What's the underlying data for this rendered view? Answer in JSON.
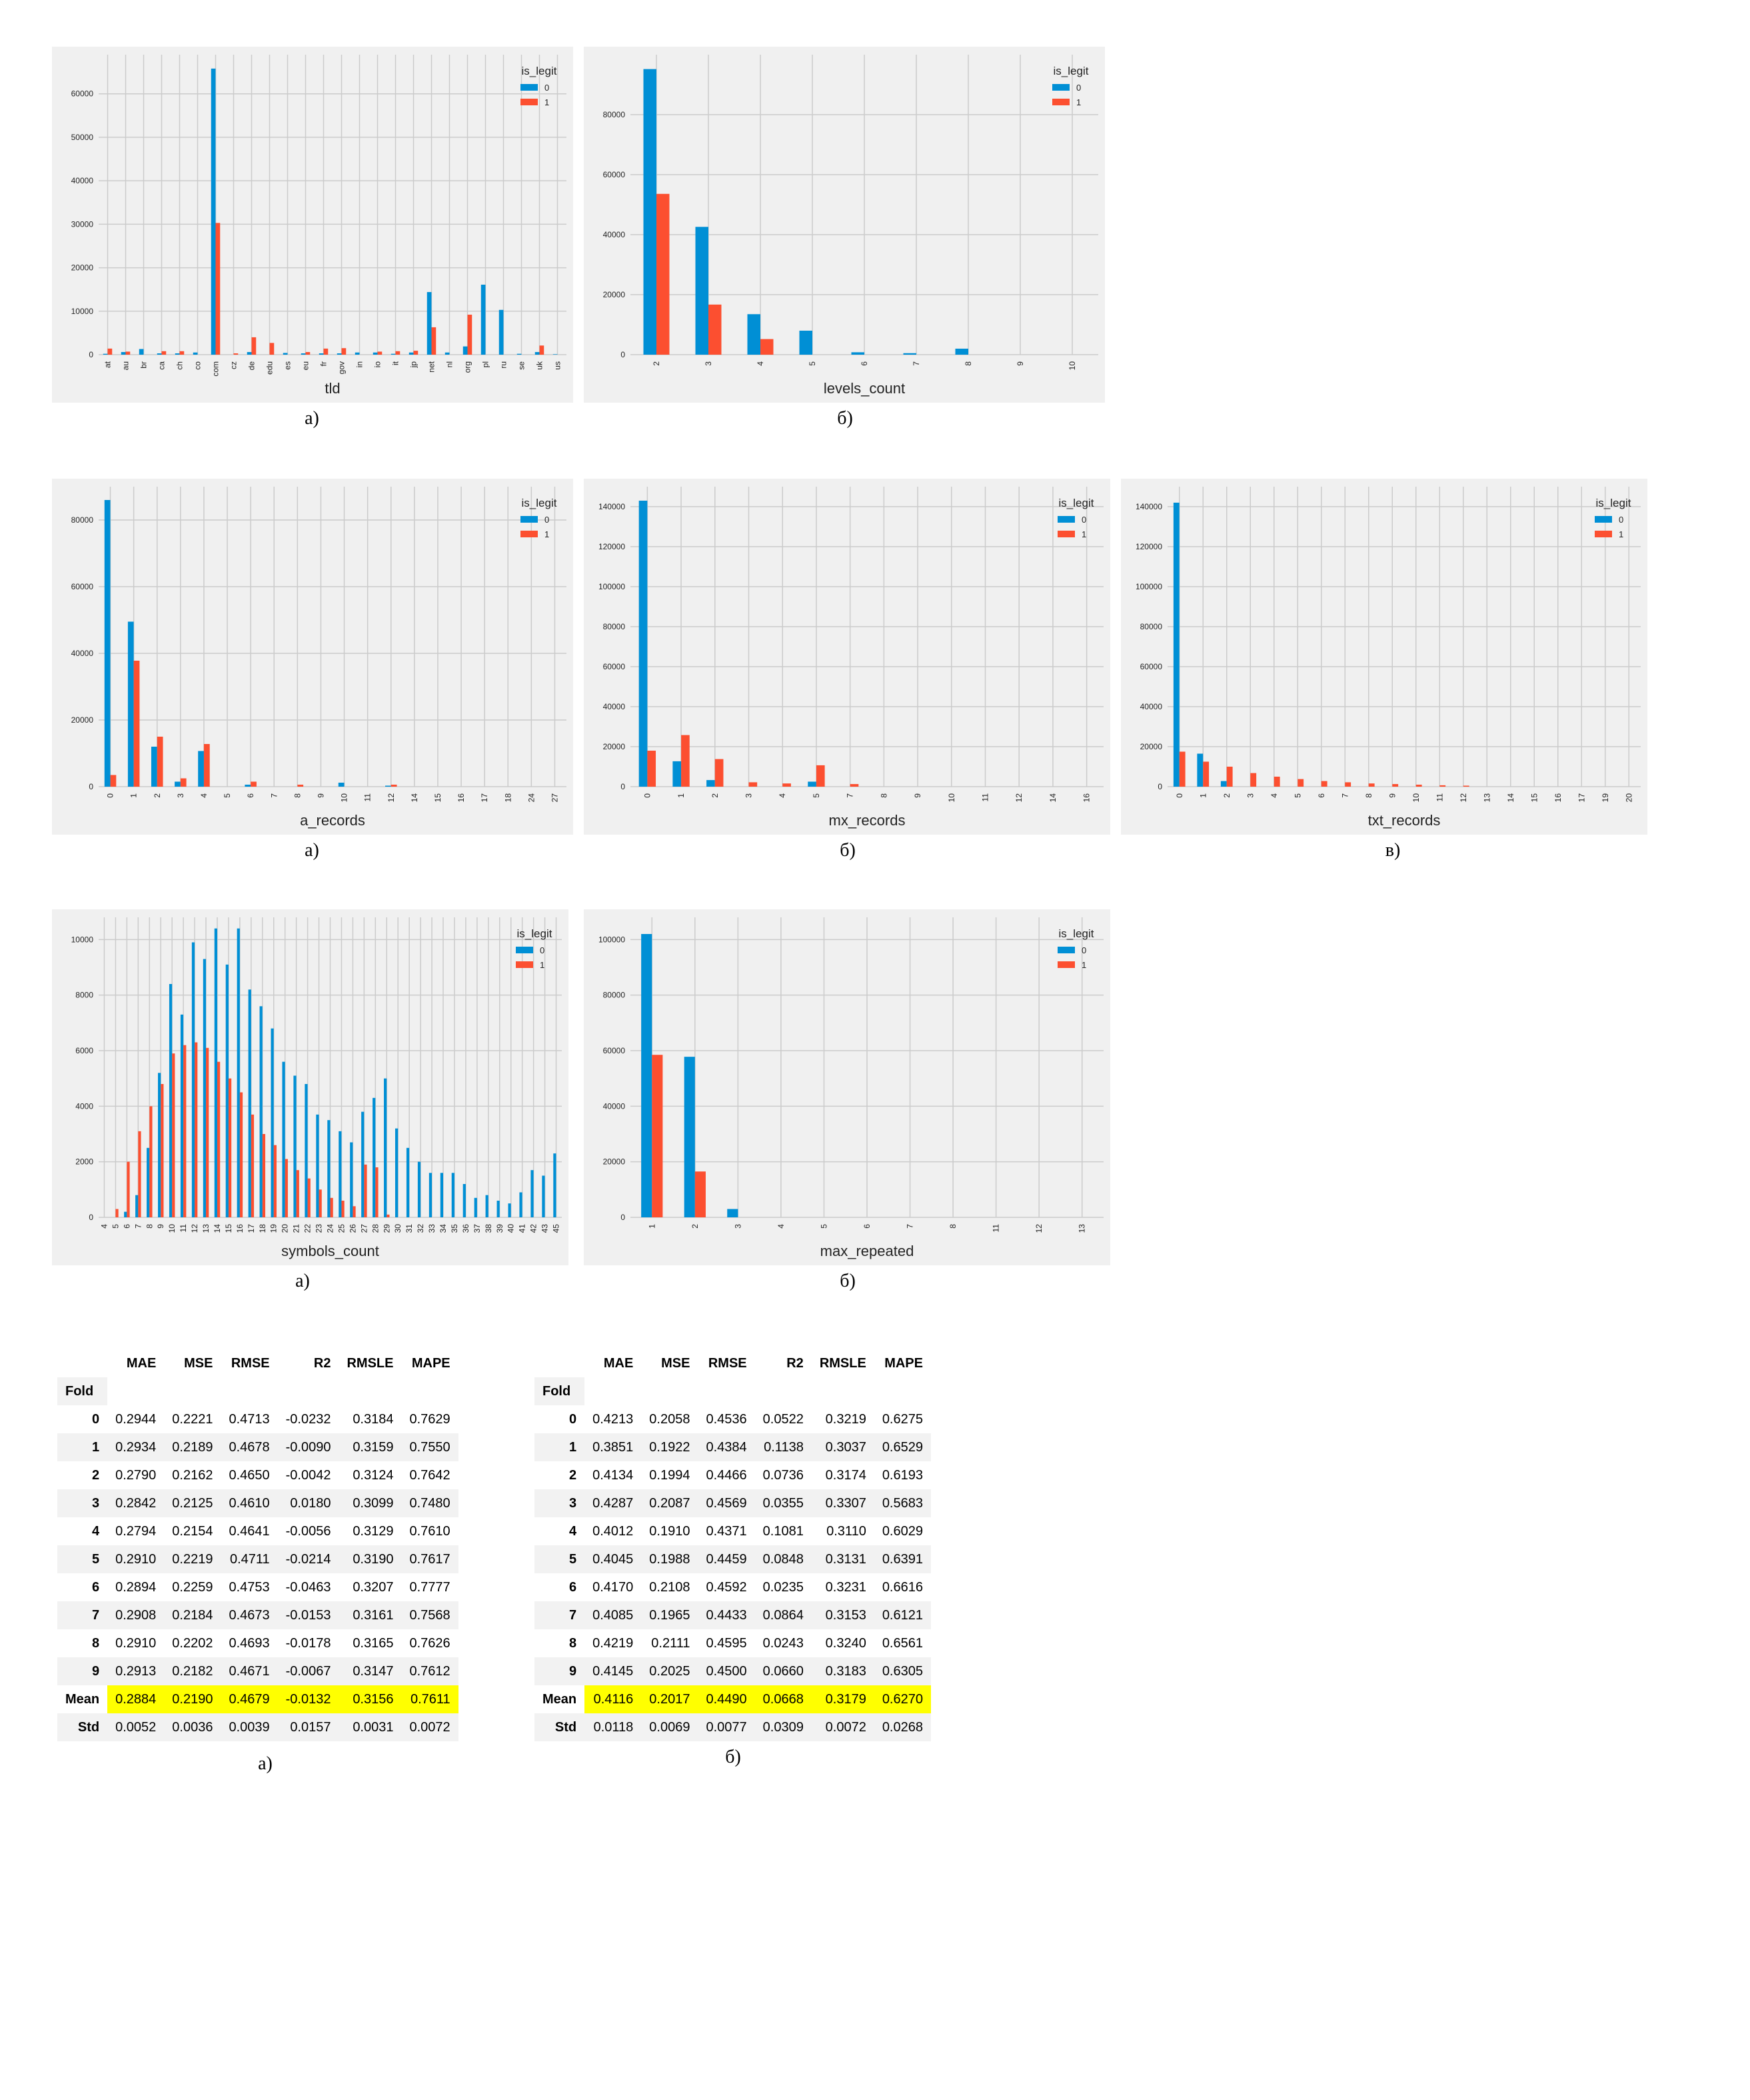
{
  "colors": {
    "legit_0": "#008fd5",
    "legit_1": "#fc4f30",
    "background": "#f0f0f0",
    "grid": "#cbcbcb"
  },
  "charts": [
    {
      "id": "tld",
      "caption": "а)",
      "chart_data": {
        "type": "bar",
        "xlabel": "tld",
        "ylabel": "",
        "legend_title": "is_legit",
        "legend_loc": "top-right",
        "categories": [
          "at",
          "au",
          "br",
          "ca",
          "ch",
          "co",
          "com",
          "cz",
          "de",
          "edu",
          "es",
          "eu",
          "fr",
          "gov",
          "in",
          "io",
          "it",
          "jp",
          "net",
          "nl",
          "org",
          "pl",
          "ru",
          "se",
          "uk",
          "us"
        ],
        "series": [
          {
            "name": "0",
            "values": [
              200,
              600,
              1300,
              300,
              300,
              500,
              65800,
              0,
              600,
              0,
              400,
              300,
              300,
              300,
              500,
              500,
              200,
              500,
              14400,
              500,
              1900,
              16100,
              10300,
              200,
              600,
              100
            ]
          },
          {
            "name": "1",
            "values": [
              1400,
              700,
              0,
              800,
              800,
              0,
              30300,
              300,
              4000,
              2700,
              0,
              600,
              1400,
              1500,
              0,
              700,
              800,
              900,
              6300,
              0,
              9200,
              0,
              0,
              0,
              2100,
              0
            ]
          }
        ],
        "ylim": [
          0,
          69000
        ],
        "yticks": [
          0,
          10000,
          20000,
          30000,
          40000,
          50000,
          60000
        ],
        "grid": true
      }
    },
    {
      "id": "levels_count",
      "caption": "б)",
      "chart_data": {
        "type": "bar",
        "xlabel": "levels_count",
        "ylabel": "",
        "legend_title": "is_legit",
        "legend_loc": "top-right",
        "categories": [
          "2",
          "3",
          "4",
          "5",
          "6",
          "7",
          "8",
          "9",
          "10"
        ],
        "series": [
          {
            "name": "0",
            "values": [
              95200,
              42600,
              13500,
              8000,
              800,
              500,
              2000,
              0,
              0
            ]
          },
          {
            "name": "1",
            "values": [
              53600,
              16700,
              5200,
              0,
              0,
              0,
              0,
              0,
              0
            ]
          }
        ],
        "ylim": [
          0,
          100000
        ],
        "yticks": [
          0,
          20000,
          40000,
          60000,
          80000
        ],
        "grid": true
      }
    },
    {
      "id": "a_records",
      "caption": "а)",
      "chart_data": {
        "type": "bar",
        "xlabel": "a_records",
        "ylabel": "",
        "legend_title": "is_legit",
        "legend_loc": "top-right",
        "categories": [
          "0",
          "1",
          "2",
          "3",
          "4",
          "5",
          "6",
          "7",
          "8",
          "9",
          "10",
          "11",
          "12",
          "14",
          "15",
          "16",
          "17",
          "18",
          "24",
          "27"
        ],
        "series": [
          {
            "name": "0",
            "values": [
              86000,
              49500,
              12000,
              1500,
              10700,
              0,
              600,
              0,
              0,
              0,
              1200,
              0,
              300,
              0,
              0,
              0,
              0,
              0,
              0,
              0
            ]
          },
          {
            "name": "1",
            "values": [
              3500,
              37800,
              15000,
              2500,
              12800,
              0,
              1500,
              0,
              600,
              0,
              0,
              0,
              600,
              0,
              0,
              0,
              0,
              0,
              0,
              0
            ]
          }
        ],
        "ylim": [
          0,
          90000
        ],
        "yticks": [
          0,
          20000,
          40000,
          60000,
          80000
        ],
        "grid": true
      }
    },
    {
      "id": "mx_records",
      "caption": "б)",
      "chart_data": {
        "type": "bar",
        "xlabel": "mx_records",
        "ylabel": "",
        "legend_title": "is_legit",
        "legend_loc": "top-right",
        "categories": [
          "0",
          "1",
          "2",
          "3",
          "4",
          "5",
          "7",
          "8",
          "9",
          "10",
          "11",
          "12",
          "14",
          "16"
        ],
        "series": [
          {
            "name": "0",
            "values": [
              143000,
              12700,
              3300,
              0,
              0,
              2500,
              0,
              0,
              0,
              0,
              0,
              0,
              0,
              0
            ]
          },
          {
            "name": "1",
            "values": [
              18000,
              25800,
              13800,
              2200,
              1600,
              10700,
              1300,
              0,
              0,
              0,
              0,
              0,
              0,
              0
            ]
          }
        ],
        "ylim": [
          0,
          150000
        ],
        "yticks": [
          0,
          20000,
          40000,
          60000,
          80000,
          100000,
          120000,
          140000
        ],
        "grid": true
      }
    },
    {
      "id": "txt_records",
      "caption": "в)",
      "chart_data": {
        "type": "bar",
        "xlabel": "txt_records",
        "ylabel": "",
        "legend_title": "is_legit",
        "legend_loc": "top-right",
        "categories": [
          "0",
          "1",
          "2",
          "3",
          "4",
          "5",
          "6",
          "7",
          "8",
          "9",
          "10",
          "11",
          "12",
          "13",
          "14",
          "15",
          "16",
          "17",
          "19",
          "20"
        ],
        "series": [
          {
            "name": "0",
            "values": [
              142000,
              16500,
              2800,
              0,
              0,
              0,
              0,
              0,
              0,
              0,
              0,
              0,
              0,
              0,
              0,
              0,
              0,
              0,
              0,
              0
            ]
          },
          {
            "name": "1",
            "values": [
              17500,
              12500,
              10000,
              6800,
              5000,
              3800,
              2800,
              2200,
              1600,
              1300,
              1000,
              700,
              500,
              0,
              0,
              0,
              0,
              0,
              0,
              0
            ]
          }
        ],
        "ylim": [
          0,
          150000
        ],
        "yticks": [
          0,
          20000,
          40000,
          60000,
          80000,
          100000,
          120000,
          140000
        ],
        "grid": true
      }
    },
    {
      "id": "symbols_count",
      "caption": "а)",
      "chart_data": {
        "type": "bar",
        "xlabel": "symbols_count",
        "ylabel": "",
        "legend_title": "is_legit",
        "legend_loc": "top-right",
        "categories": [
          "4",
          "5",
          "6",
          "7",
          "8",
          "9",
          "10",
          "11",
          "12",
          "13",
          "14",
          "15",
          "16",
          "17",
          "18",
          "19",
          "20",
          "21",
          "22",
          "23",
          "24",
          "25",
          "26",
          "27",
          "28",
          "29",
          "30",
          "31",
          "32",
          "33",
          "34",
          "35",
          "36",
          "37",
          "38",
          "39",
          "40",
          "41",
          "42",
          "43",
          "45"
        ],
        "series": [
          {
            "name": "0",
            "values": [
              0,
              0,
              200,
              800,
              2500,
              5200,
              8400,
              7300,
              9900,
              9300,
              10400,
              9100,
              10400,
              8200,
              7600,
              6800,
              5600,
              5100,
              4800,
              3700,
              3500,
              3100,
              2700,
              3800,
              4300,
              5000,
              3200,
              2500,
              2000,
              1600,
              1600,
              1600,
              1200,
              700,
              800,
              600,
              500,
              900,
              1700,
              1500,
              2300
            ]
          },
          {
            "name": "1",
            "values": [
              0,
              300,
              2000,
              3100,
              4000,
              4800,
              5900,
              6200,
              6300,
              6100,
              5600,
              5000,
              4500,
              3700,
              3000,
              2600,
              2100,
              1700,
              1400,
              1000,
              700,
              600,
              400,
              1900,
              1800,
              100,
              0,
              0,
              0,
              0,
              0,
              0,
              0,
              0,
              0,
              0,
              0,
              0,
              0,
              0,
              0
            ]
          }
        ],
        "ylim": [
          0,
          10800
        ],
        "yticks": [
          0,
          2000,
          4000,
          6000,
          8000,
          10000
        ],
        "grid": true
      }
    },
    {
      "id": "max_repeated",
      "caption": "б)",
      "chart_data": {
        "type": "bar",
        "xlabel": "max_repeated",
        "ylabel": "",
        "legend_title": "is_legit",
        "legend_loc": "top-right",
        "categories": [
          "1",
          "2",
          "3",
          "4",
          "5",
          "6",
          "7",
          "8",
          "11",
          "12",
          "13"
        ],
        "series": [
          {
            "name": "0",
            "values": [
              102000,
              57800,
              3000,
              0,
              0,
              0,
              0,
              0,
              0,
              0,
              0
            ]
          },
          {
            "name": "1",
            "values": [
              58500,
              16500,
              0,
              0,
              0,
              0,
              0,
              0,
              0,
              0,
              0
            ]
          }
        ],
        "ylim": [
          0,
          108000
        ],
        "yticks": [
          0,
          20000,
          40000,
          60000,
          80000,
          100000
        ],
        "grid": true
      }
    }
  ],
  "tables": [
    {
      "id": "table_a",
      "caption": "а)",
      "chart_data": {
        "type": "table",
        "index_name": "Fold",
        "columns": [
          "MAE",
          "MSE",
          "RMSE",
          "R2",
          "RMSLE",
          "MAPE"
        ],
        "rows": [
          {
            "label": "0",
            "values": [
              "0.2944",
              "0.2221",
              "0.4713",
              "-0.0232",
              "0.3184",
              "0.7629"
            ]
          },
          {
            "label": "1",
            "values": [
              "0.2934",
              "0.2189",
              "0.4678",
              "-0.0090",
              "0.3159",
              "0.7550"
            ]
          },
          {
            "label": "2",
            "values": [
              "0.2790",
              "0.2162",
              "0.4650",
              "-0.0042",
              "0.3124",
              "0.7642"
            ]
          },
          {
            "label": "3",
            "values": [
              "0.2842",
              "0.2125",
              "0.4610",
              "0.0180",
              "0.3099",
              "0.7480"
            ]
          },
          {
            "label": "4",
            "values": [
              "0.2794",
              "0.2154",
              "0.4641",
              "-0.0056",
              "0.3129",
              "0.7610"
            ]
          },
          {
            "label": "5",
            "values": [
              "0.2910",
              "0.2219",
              "0.4711",
              "-0.0214",
              "0.3190",
              "0.7617"
            ]
          },
          {
            "label": "6",
            "values": [
              "0.2894",
              "0.2259",
              "0.4753",
              "-0.0463",
              "0.3207",
              "0.7777"
            ]
          },
          {
            "label": "7",
            "values": [
              "0.2908",
              "0.2184",
              "0.4673",
              "-0.0153",
              "0.3161",
              "0.7568"
            ]
          },
          {
            "label": "8",
            "values": [
              "0.2910",
              "0.2202",
              "0.4693",
              "-0.0178",
              "0.3165",
              "0.7626"
            ]
          },
          {
            "label": "9",
            "values": [
              "0.2913",
              "0.2182",
              "0.4671",
              "-0.0067",
              "0.3147",
              "0.7612"
            ]
          },
          {
            "label": "Mean",
            "values": [
              "0.2884",
              "0.2190",
              "0.4679",
              "-0.0132",
              "0.3156",
              "0.7611"
            ],
            "highlight": true
          },
          {
            "label": "Std",
            "values": [
              "0.0052",
              "0.0036",
              "0.0039",
              "0.0157",
              "0.0031",
              "0.0072"
            ]
          }
        ]
      }
    },
    {
      "id": "table_b",
      "caption": "б)",
      "chart_data": {
        "type": "table",
        "index_name": "Fold",
        "columns": [
          "MAE",
          "MSE",
          "RMSE",
          "R2",
          "RMSLE",
          "MAPE"
        ],
        "rows": [
          {
            "label": "0",
            "values": [
              "0.4213",
              "0.2058",
              "0.4536",
              "0.0522",
              "0.3219",
              "0.6275"
            ]
          },
          {
            "label": "1",
            "values": [
              "0.3851",
              "0.1922",
              "0.4384",
              "0.1138",
              "0.3037",
              "0.6529"
            ]
          },
          {
            "label": "2",
            "values": [
              "0.4134",
              "0.1994",
              "0.4466",
              "0.0736",
              "0.3174",
              "0.6193"
            ]
          },
          {
            "label": "3",
            "values": [
              "0.4287",
              "0.2087",
              "0.4569",
              "0.0355",
              "0.3307",
              "0.5683"
            ]
          },
          {
            "label": "4",
            "values": [
              "0.4012",
              "0.1910",
              "0.4371",
              "0.1081",
              "0.3110",
              "0.6029"
            ]
          },
          {
            "label": "5",
            "values": [
              "0.4045",
              "0.1988",
              "0.4459",
              "0.0848",
              "0.3131",
              "0.6391"
            ]
          },
          {
            "label": "6",
            "values": [
              "0.4170",
              "0.2108",
              "0.4592",
              "0.0235",
              "0.3231",
              "0.6616"
            ]
          },
          {
            "label": "7",
            "values": [
              "0.4085",
              "0.1965",
              "0.4433",
              "0.0864",
              "0.3153",
              "0.6121"
            ]
          },
          {
            "label": "8",
            "values": [
              "0.4219",
              "0.2111",
              "0.4595",
              "0.0243",
              "0.3240",
              "0.6561"
            ]
          },
          {
            "label": "9",
            "values": [
              "0.4145",
              "0.2025",
              "0.4500",
              "0.0660",
              "0.3183",
              "0.6305"
            ]
          },
          {
            "label": "Mean",
            "values": [
              "0.4116",
              "0.2017",
              "0.4490",
              "0.0668",
              "0.3179",
              "0.6270"
            ],
            "highlight": true
          },
          {
            "label": "Std",
            "values": [
              "0.0118",
              "0.0069",
              "0.0077",
              "0.0309",
              "0.0072",
              "0.0268"
            ]
          }
        ]
      }
    }
  ]
}
